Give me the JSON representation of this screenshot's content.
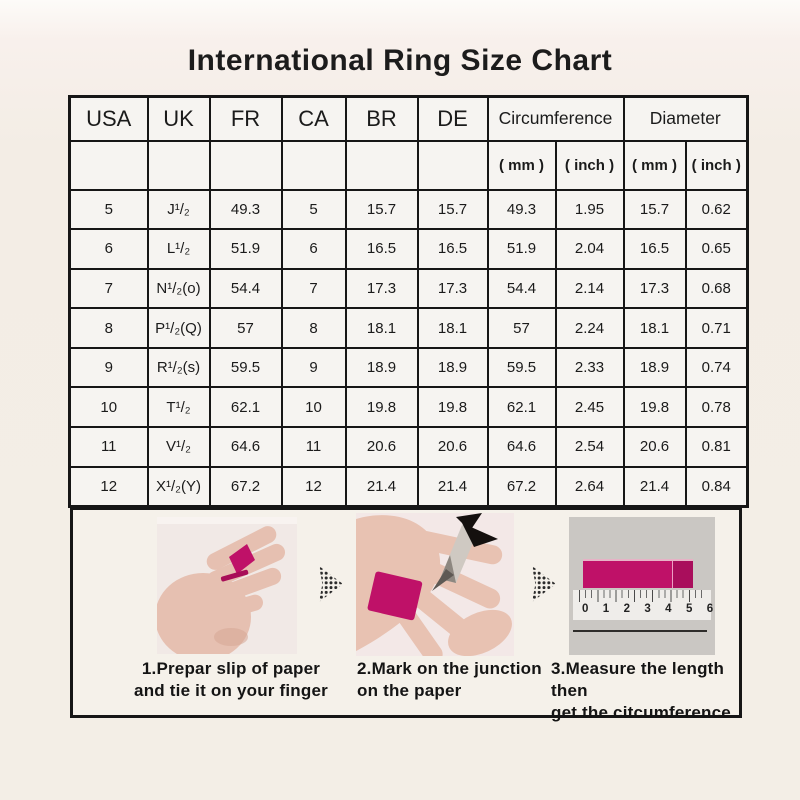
{
  "page": {
    "title": "International Ring Size Chart"
  },
  "table": {
    "columns": [
      "USA",
      "UK",
      "FR",
      "CA",
      "BR",
      "DE"
    ],
    "groups": [
      {
        "label": "Circumference",
        "units": [
          "( mm )",
          "( inch )"
        ]
      },
      {
        "label": "Diameter",
        "units": [
          "( mm )",
          "( inch )"
        ]
      }
    ],
    "rows": [
      [
        "5",
        "J¹/₂",
        "49.3",
        "5",
        "15.7",
        "15.7",
        "49.3",
        "1.95",
        "15.7",
        "0.62"
      ],
      [
        "6",
        "L¹/₂",
        "51.9",
        "6",
        "16.5",
        "16.5",
        "51.9",
        "2.04",
        "16.5",
        "0.65"
      ],
      [
        "7",
        "N¹/₂(o)",
        "54.4",
        "7",
        "17.3",
        "17.3",
        "54.4",
        "2.14",
        "17.3",
        "0.68"
      ],
      [
        "8",
        "P¹/₂(Q)",
        "57",
        "8",
        "18.1",
        "18.1",
        "57",
        "2.24",
        "18.1",
        "0.71"
      ],
      [
        "9",
        "R¹/₂(s)",
        "59.5",
        "9",
        "18.9",
        "18.9",
        "59.5",
        "2.33",
        "18.9",
        "0.74"
      ],
      [
        "10",
        "T¹/₂",
        "62.1",
        "10",
        "19.8",
        "19.8",
        "62.1",
        "2.45",
        "19.8",
        "0.78"
      ],
      [
        "11",
        "V¹/₂",
        "64.6",
        "11",
        "20.6",
        "20.6",
        "64.6",
        "2.54",
        "20.6",
        "0.81"
      ],
      [
        "12",
        "X¹/₂(Y)",
        "67.2",
        "12",
        "21.4",
        "21.4",
        "67.2",
        "2.64",
        "21.4",
        "0.84"
      ]
    ]
  },
  "steps": [
    {
      "caption_line1": "1.Prepar slip of paper",
      "caption_line2": "and tie it on your finger"
    },
    {
      "caption_line1": "2.Mark on the junction",
      "caption_line2": "on the paper"
    },
    {
      "caption_line1": "3.Measure the length then",
      "caption_line2": "get the citcumference",
      "ruler_numbers": "0 1 2 3 4 5 6"
    }
  ],
  "colors": {
    "accent_magenta": "#bf1168",
    "table_border": "#161616",
    "page_background": "#f3eee6"
  }
}
